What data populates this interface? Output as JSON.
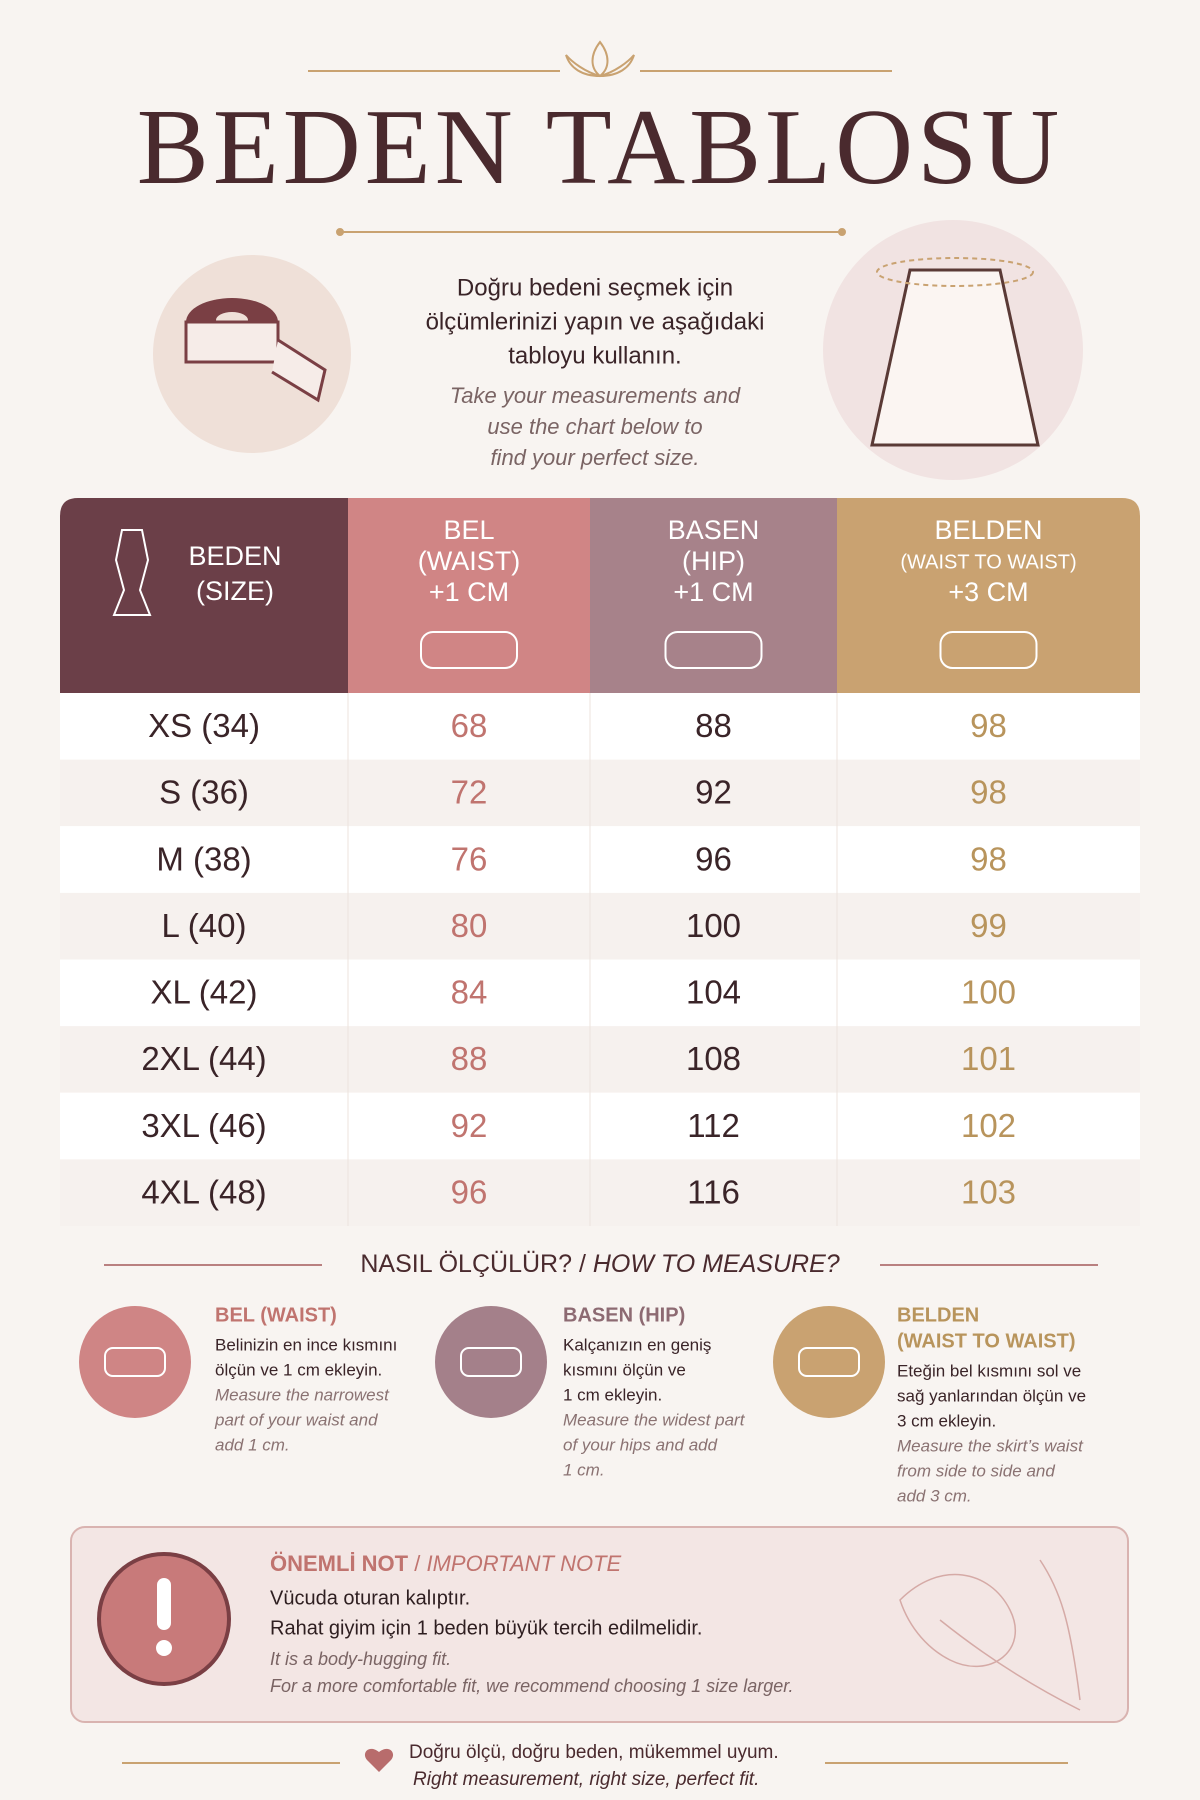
{
  "header": {
    "title": "BEDEN TABLOSU",
    "intro_tr": [
      "Doğru bedeni seçmek için",
      "ölçümlerinizi yapın ve aşağıdaki",
      "tabloyu kullanın."
    ],
    "intro_en": [
      "Take your measurements and",
      "use the chart below to",
      "find your perfect size."
    ]
  },
  "table": {
    "columns": [
      [
        "BEDEN",
        "(SIZE)"
      ],
      [
        "BEL",
        "(WAIST)",
        "+1 CM"
      ],
      [
        "BASEN",
        "(HIP)",
        "+1 CM"
      ],
      [
        "BELDEN",
        "(WAIST TO WAIST)",
        "+3 CM"
      ]
    ],
    "rows": [
      [
        "XS (34)",
        68,
        88,
        98
      ],
      [
        "S (36)",
        72,
        92,
        98
      ],
      [
        "M (38)",
        76,
        96,
        98
      ],
      [
        "L (40)",
        80,
        100,
        99
      ],
      [
        "XL (42)",
        84,
        104,
        100
      ],
      [
        "2XL (44)",
        88,
        108,
        101
      ],
      [
        "3XL (46)",
        92,
        112,
        102
      ],
      [
        "4XL (48)",
        96,
        116,
        103
      ]
    ]
  },
  "how_to": {
    "title_tr": "NASIL ÖLÇÜLÜR?",
    "separator": "/",
    "title_en": "HOW TO MEASURE?",
    "items": [
      {
        "title": [
          "BEL (WAIST)"
        ],
        "text_tr": [
          "Belinizin en ince kısmını",
          "ölçün ve 1 cm ekleyin."
        ],
        "text_en": [
          "Measure the narrowest",
          "part of your waist and",
          "add 1 cm."
        ]
      },
      {
        "title": [
          "BASEN (HIP)"
        ],
        "text_tr": [
          "Kalçanızın en geniş",
          "kısmını ölçün ve",
          "1 cm ekleyin."
        ],
        "text_en": [
          "Measure the widest part",
          "of your hips and add",
          "1 cm."
        ]
      },
      {
        "title": [
          "BELDEN",
          "(WAIST TO WAIST)"
        ],
        "text_tr": [
          "Eteğin bel kısmını sol ve",
          "sağ yanlarından ölçün ve",
          "3 cm ekleyin."
        ],
        "text_en": [
          "Measure the skirt’s waist",
          "from side to side and",
          "add 3 cm."
        ]
      }
    ]
  },
  "note": {
    "title_tr": "ÖNEMLİ NOT",
    "separator": "/",
    "title_en": "IMPORTANT NOTE",
    "lines_tr": [
      "Vücuda oturan kalıptır.",
      "Rahat giyim için 1 beden büyük tercih edilmelidir."
    ],
    "lines_en": [
      "It is a body-hugging fit.",
      "For a more comfortable fit, we recommend choosing 1 size larger."
    ]
  },
  "footer": {
    "line_tr": "Doğru ölçü, doğru beden, mükemmel uyum.",
    "line_en": "Right measurement, right size, perfect fit."
  }
}
